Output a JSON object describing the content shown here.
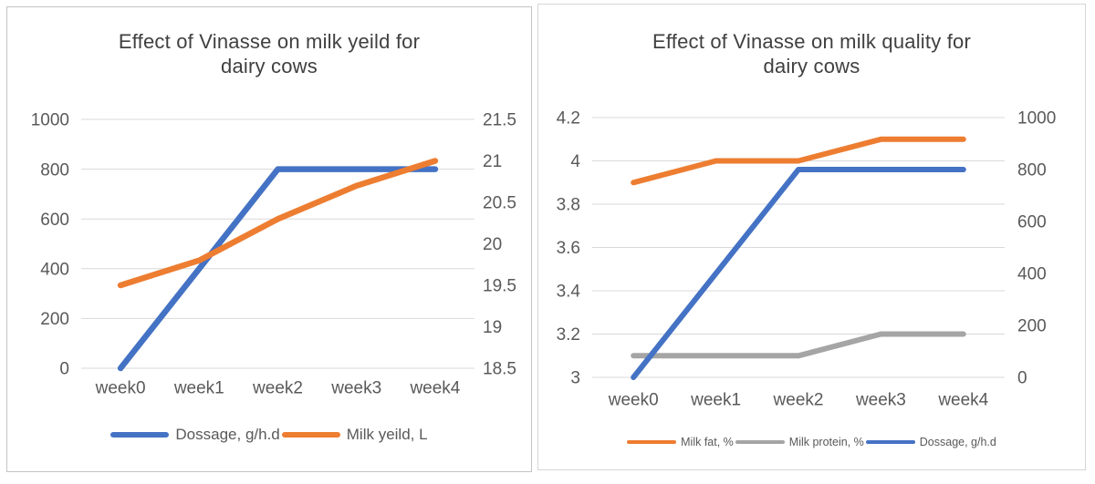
{
  "theme": {
    "background": "#ffffff",
    "grid_color": "#d9d9d9",
    "axis_text_color": "#595959",
    "title_color": "#404040",
    "card_border_color": "#cfcfcf",
    "blue": "#4472C4",
    "orange": "#ED7D31",
    "gray": "#A5A5A5"
  },
  "chart_data": [
    {
      "type": "line",
      "title": "Effect of Vinasse on milk yeild for dairy cows",
      "title_lines": [
        "Effect of Vinasse on milk yeild for",
        "dairy cows"
      ],
      "categories": [
        "week0",
        "week1",
        "week2",
        "week3",
        "week4"
      ],
      "grid": true,
      "legend_position": "bottom",
      "left_axis": {
        "min": 0,
        "max": 1000,
        "tick_labels": [
          "1000",
          "800",
          "600",
          "400",
          "200",
          "0"
        ]
      },
      "right_axis": {
        "min": 18.5,
        "max": 21.5,
        "tick_labels": [
          "21.5",
          "21",
          "20.5",
          "20",
          "19.5",
          "19",
          "18.5"
        ]
      },
      "series": [
        {
          "name": "Dossage, g/h.d",
          "axis": "left",
          "color": "#4472C4",
          "values": [
            0,
            400,
            800,
            800,
            800
          ]
        },
        {
          "name": "Milk yeild, L",
          "axis": "right",
          "color": "#ED7D31",
          "values": [
            19.5,
            19.8,
            20.3,
            20.7,
            21
          ]
        }
      ]
    },
    {
      "type": "line",
      "title": "Effect of Vinasse on milk quality for dairy cows",
      "title_lines": [
        "Effect of Vinasse on milk quality for",
        "dairy cows"
      ],
      "categories": [
        "week0",
        "week1",
        "week2",
        "week3",
        "week4"
      ],
      "grid": true,
      "legend_position": "bottom",
      "left_axis": {
        "min": 3,
        "max": 4.2,
        "tick_labels": [
          "4.2",
          "4",
          "3.8",
          "3.6",
          "3.4",
          "3.2",
          "3"
        ]
      },
      "right_axis": {
        "min": 0,
        "max": 1000,
        "tick_labels": [
          "1000",
          "800",
          "600",
          "400",
          "200",
          "0"
        ]
      },
      "series": [
        {
          "name": "Milk fat, %",
          "axis": "left",
          "color": "#ED7D31",
          "values": [
            3.9,
            4.0,
            4.0,
            4.1,
            4.1
          ]
        },
        {
          "name": "Milk protein, %",
          "axis": "left",
          "color": "#A5A5A5",
          "values": [
            3.1,
            3.1,
            3.1,
            3.2,
            3.2
          ]
        },
        {
          "name": "Dossage, g/h.d",
          "axis": "right",
          "color": "#4472C4",
          "values": [
            0,
            400,
            800,
            800,
            800
          ]
        }
      ]
    }
  ]
}
